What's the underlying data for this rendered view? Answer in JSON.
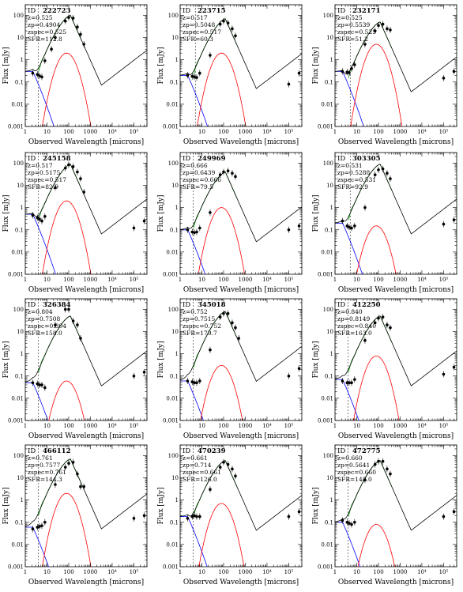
{
  "figure": {
    "xlabel": "Observed Wavelength [microns]",
    "ylabel": "Flux [mJy]",
    "x_ticks": [
      "1",
      "10",
      "100",
      "1000",
      "10⁴",
      "10⁵"
    ],
    "y_ticks": [
      "0.001",
      "0.01",
      "0.1",
      "1",
      "10",
      "100"
    ],
    "id_label": "ID",
    "colors": {
      "total": "#000000",
      "agn": "#0000ff",
      "starburst": "#ff0000",
      "host": "#00b000"
    }
  },
  "chart_data": [
    {
      "type": "line",
      "id": "222723",
      "z": "0.525",
      "zp": "0.4904",
      "zspec": "0.525",
      "sfr": "112.8",
      "xlim": [
        1,
        400000
      ],
      "ylim": [
        0.001,
        300
      ],
      "log_x": true,
      "log_y": true,
      "dashed_lines": [
        4.0
      ],
      "components": {
        "peak_total": 100,
        "peak_sb": 2.0,
        "agn_norm": 0.3
      },
      "points": [
        [
          2.2,
          0.25
        ],
        [
          3.6,
          0.22
        ],
        [
          4.5,
          0.19
        ],
        [
          5.8,
          0.17
        ],
        [
          8,
          0.9
        ],
        [
          16,
          3
        ],
        [
          24,
          10
        ],
        [
          70,
          55
        ],
        [
          100,
          80
        ],
        [
          160,
          75
        ],
        [
          250,
          30
        ],
        [
          350,
          14
        ],
        [
          500,
          5
        ],
        [
          1000000,
          0.2
        ]
      ]
    },
    {
      "type": "line",
      "id": "223715",
      "z": "0.517",
      "zp": "0.5048",
      "zspec": "0.517",
      "sfr": "60.3",
      "xlim": [
        1,
        400000
      ],
      "ylim": [
        0.001,
        300
      ],
      "log_x": true,
      "log_y": true,
      "dashed_lines": [
        5.0
      ],
      "components": {
        "peak_total": 70,
        "peak_sb": 2.0,
        "agn_norm": 0.2
      },
      "points": [
        [
          2.2,
          0.2
        ],
        [
          3.6,
          0.18
        ],
        [
          4.5,
          0.17
        ],
        [
          5.8,
          0.16
        ],
        [
          8,
          0.25
        ],
        [
          24,
          1.6
        ],
        [
          70,
          40
        ],
        [
          100,
          55
        ],
        [
          160,
          45
        ],
        [
          250,
          25
        ],
        [
          350,
          12
        ],
        [
          100000,
          0.08
        ],
        [
          300000,
          0.25
        ]
      ]
    },
    {
      "type": "line",
      "id": "232171",
      "z": "0.525",
      "zp": "0.5539",
      "zspec": "0.525",
      "sfr": "51.2",
      "xlim": [
        1,
        400000
      ],
      "ylim": [
        0.001,
        300
      ],
      "log_x": true,
      "log_y": true,
      "dashed_lines": [
        5.0
      ],
      "components": {
        "peak_total": 50,
        "peak_sb": 5.0,
        "agn_norm": 0.3
      },
      "points": [
        [
          2.2,
          0.3
        ],
        [
          3.6,
          0.28
        ],
        [
          4.5,
          0.26
        ],
        [
          5.8,
          0.4
        ],
        [
          8,
          0.6
        ],
        [
          24,
          5
        ],
        [
          70,
          20
        ],
        [
          100,
          35
        ],
        [
          160,
          40
        ],
        [
          250,
          25
        ],
        [
          350,
          22
        ],
        [
          100000,
          0.15
        ],
        [
          300000,
          0.3
        ]
      ]
    },
    {
      "type": "line",
      "id": "245158",
      "z": "0.517",
      "zp": "0.5175",
      "zspec": "0.517",
      "sfr": "82.9",
      "xlim": [
        1,
        400000
      ],
      "ylim": [
        0.001,
        300
      ],
      "log_x": true,
      "log_y": true,
      "dashed_lines": [
        4.0
      ],
      "components": {
        "peak_total": 90,
        "peak_sb": 2.0,
        "agn_norm": 0.5
      },
      "points": [
        [
          2.2,
          0.45
        ],
        [
          3.6,
          0.35
        ],
        [
          4.5,
          0.3
        ],
        [
          5.8,
          0.25
        ],
        [
          8,
          0.4
        ],
        [
          24,
          8
        ],
        [
          70,
          60
        ],
        [
          100,
          85
        ],
        [
          160,
          70
        ],
        [
          250,
          40
        ],
        [
          350,
          20
        ],
        [
          500,
          5
        ],
        [
          100000,
          0.12
        ],
        [
          300000,
          0.25
        ]
      ]
    },
    {
      "type": "line",
      "id": "249969",
      "z": "0.666",
      "zp": "0.6439",
      "zspec": "0.666",
      "sfr": "79.5",
      "xlim": [
        1,
        400000
      ],
      "ylim": [
        0.001,
        300
      ],
      "log_x": true,
      "log_y": true,
      "dashed_lines": [
        4.0
      ],
      "components": {
        "peak_total": 40,
        "peak_sb": 1.0,
        "agn_norm": 0.1
      },
      "points": [
        [
          2.2,
          0.1
        ],
        [
          3.6,
          0.08
        ],
        [
          4.5,
          0.075
        ],
        [
          5.8,
          0.08
        ],
        [
          8,
          0.12
        ],
        [
          24,
          0.6
        ],
        [
          70,
          30
        ],
        [
          100,
          40
        ],
        [
          160,
          45
        ],
        [
          250,
          35
        ],
        [
          350,
          25
        ],
        [
          100000,
          0.1
        ],
        [
          300000,
          0.15
        ]
      ]
    },
    {
      "type": "line",
      "id": "303305",
      "z": "0.531",
      "zp": "0.5288",
      "zspec": "0.531",
      "sfr": "92.9",
      "xlim": [
        1,
        400000
      ],
      "ylim": [
        0.001,
        300
      ],
      "log_x": true,
      "log_y": true,
      "dashed_lines": [
        5.0
      ],
      "components": {
        "peak_total": 90,
        "peak_sb": 0.15,
        "agn_norm": 0.2
      },
      "points": [
        [
          2.2,
          0.25
        ],
        [
          3.6,
          0.15
        ],
        [
          4.5,
          0.13
        ],
        [
          5.8,
          0.12
        ],
        [
          8,
          0.15
        ],
        [
          24,
          1.0
        ],
        [
          70,
          30
        ],
        [
          100,
          50
        ],
        [
          160,
          55
        ],
        [
          250,
          35
        ],
        [
          350,
          20
        ],
        [
          100000,
          0.18
        ],
        [
          300000,
          0.28
        ]
      ]
    },
    {
      "type": "line",
      "id": "326384",
      "z": "0.804",
      "zp": "0.7508",
      "zspec": "0.804",
      "sfr": "158.0",
      "xlim": [
        1,
        400000
      ],
      "ylim": [
        0.001,
        300
      ],
      "log_x": true,
      "log_y": true,
      "dashed_lines": [
        4.0
      ],
      "components": {
        "peak_total": 50,
        "peak_sb": 0.06,
        "agn_norm": 0.05
      },
      "points": [
        [
          2.2,
          0.05
        ],
        [
          3.6,
          0.045
        ],
        [
          4.5,
          0.04
        ],
        [
          5.8,
          0.04
        ],
        [
          8,
          0.03
        ],
        [
          24,
          20
        ],
        [
          70,
          100
        ],
        [
          100,
          100
        ],
        [
          160,
          30
        ],
        [
          250,
          20
        ],
        [
          350,
          5
        ],
        [
          100000,
          0.1
        ],
        [
          300000,
          0.15
        ]
      ]
    },
    {
      "type": "line",
      "id": "345018",
      "z": "0.752",
      "zp": "0.7515",
      "zspec": "0.752",
      "sfr": "179.7",
      "xlim": [
        1,
        400000
      ],
      "ylim": [
        0.001,
        300
      ],
      "log_x": true,
      "log_y": true,
      "dashed_lines": [
        4.0
      ],
      "components": {
        "peak_total": 80,
        "peak_sb": 0.3,
        "agn_norm": 0.06
      },
      "points": [
        [
          2.2,
          0.06
        ],
        [
          3.6,
          0.055
        ],
        [
          4.5,
          0.05
        ],
        [
          5.8,
          0.05
        ],
        [
          8,
          0.06
        ],
        [
          24,
          1.5
        ],
        [
          70,
          45
        ],
        [
          100,
          65
        ],
        [
          160,
          65
        ],
        [
          250,
          25
        ],
        [
          350,
          15
        ],
        [
          500,
          5
        ],
        [
          100000,
          0.1
        ],
        [
          300000,
          0.22
        ]
      ]
    },
    {
      "type": "line",
      "id": "412250",
      "z": "0.840",
      "zp": "0.8149",
      "zspec": "0.840",
      "sfr": "163.0",
      "xlim": [
        1,
        400000
      ],
      "ylim": [
        0.001,
        300
      ],
      "log_x": true,
      "log_y": true,
      "dashed_lines": [
        4.0
      ],
      "components": {
        "peak_total": 50,
        "peak_sb": 0.8,
        "agn_norm": 0.07
      },
      "points": [
        [
          2.2,
          0.06
        ],
        [
          3.6,
          0.05
        ],
        [
          4.5,
          0.05
        ],
        [
          5.8,
          0.05
        ],
        [
          8,
          0.07
        ],
        [
          24,
          4
        ],
        [
          70,
          25
        ],
        [
          100,
          40
        ],
        [
          160,
          45
        ],
        [
          250,
          20
        ],
        [
          350,
          15
        ],
        [
          100000,
          0.12
        ],
        [
          300000,
          0.25
        ]
      ]
    },
    {
      "type": "line",
      "id": "466112",
      "z": "0.761",
      "zp": "0.7577",
      "zspec": "0.761",
      "sfr": "144.3",
      "xlim": [
        1,
        400000
      ],
      "ylim": [
        0.001,
        300
      ],
      "log_x": true,
      "log_y": true,
      "dashed_lines": [
        4.0
      ],
      "components": {
        "peak_total": 70,
        "peak_sb": 2.0,
        "agn_norm": 0.06
      },
      "points": [
        [
          2.2,
          0.05
        ],
        [
          3.6,
          0.06
        ],
        [
          4.5,
          0.065
        ],
        [
          5.8,
          0.07
        ],
        [
          8,
          0.1
        ],
        [
          24,
          5
        ],
        [
          70,
          30
        ],
        [
          100,
          45
        ],
        [
          160,
          50
        ],
        [
          250,
          15
        ],
        [
          350,
          4
        ],
        [
          500,
          4
        ],
        [
          100000,
          0.15
        ],
        [
          300000,
          0.2
        ]
      ]
    },
    {
      "type": "line",
      "id": "470239",
      "z": "0.661",
      "zp": "0.714",
      "zspec": "0.661",
      "sfr": "126.0",
      "xlim": [
        1,
        400000
      ],
      "ylim": [
        0.001,
        300
      ],
      "log_x": true,
      "log_y": true,
      "dashed_lines": [
        4.0
      ],
      "components": {
        "peak_total": 60,
        "peak_sb": 0.7,
        "agn_norm": 0.18
      },
      "points": [
        [
          2.2,
          0.15
        ],
        [
          3.6,
          0.18
        ],
        [
          4.5,
          0.2
        ],
        [
          5.8,
          0.18
        ],
        [
          8,
          0.18
        ],
        [
          24,
          3
        ],
        [
          70,
          30
        ],
        [
          100,
          50
        ],
        [
          160,
          40
        ],
        [
          250,
          25
        ],
        [
          350,
          12
        ],
        [
          100000,
          0.18
        ],
        [
          300000,
          0.3
        ]
      ]
    },
    {
      "type": "line",
      "id": "472775",
      "z": "0.660",
      "zp": "0.5641",
      "zspec": "0.660",
      "sfr": "148.0",
      "xlim": [
        1,
        400000
      ],
      "ylim": [
        0.001,
        300
      ],
      "log_x": true,
      "log_y": true,
      "dashed_lines": [
        4.0
      ],
      "components": {
        "peak_total": 60,
        "peak_sb": 0.08,
        "agn_norm": 0.1
      },
      "points": [
        [
          2.2,
          0.12
        ],
        [
          3.6,
          0.1
        ],
        [
          4.5,
          0.09
        ],
        [
          5.8,
          0.08
        ],
        [
          8,
          0.1
        ],
        [
          24,
          8
        ],
        [
          70,
          40
        ],
        [
          100,
          55
        ],
        [
          160,
          55
        ],
        [
          250,
          25
        ],
        [
          350,
          15
        ],
        [
          100000,
          0.18
        ],
        [
          300000,
          0.3
        ]
      ]
    }
  ]
}
